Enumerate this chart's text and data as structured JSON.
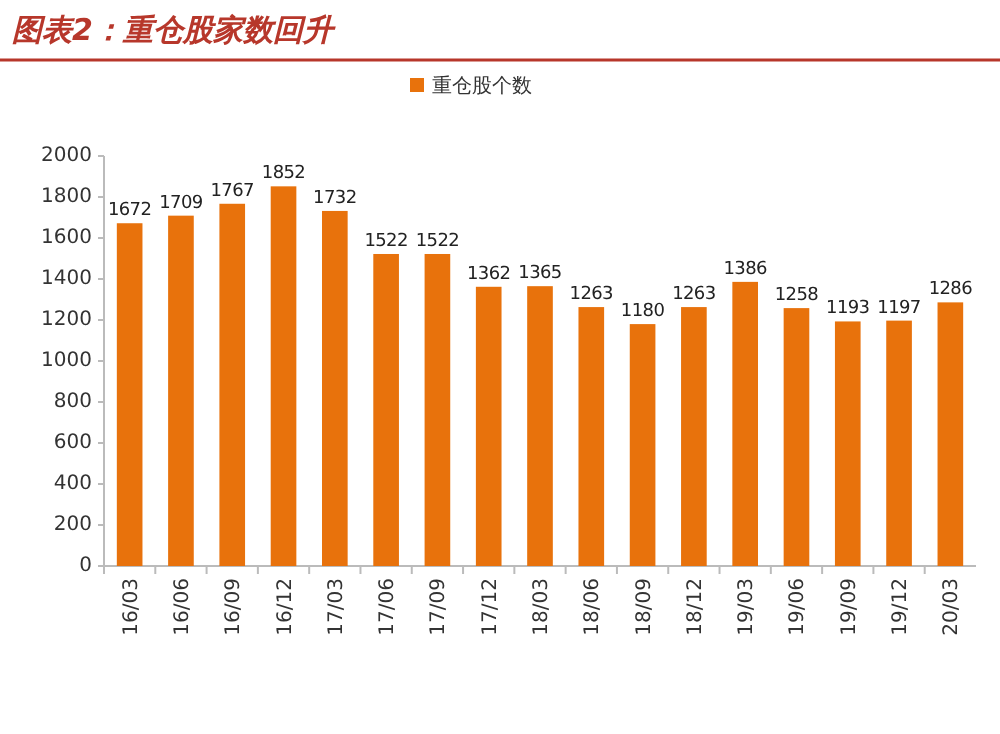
{
  "chart_data": {
    "type": "bar",
    "title": "图表2：重仓股家数回升",
    "categories": [
      "16/03",
      "16/06",
      "16/09",
      "16/12",
      "17/03",
      "17/06",
      "17/09",
      "17/12",
      "18/03",
      "18/06",
      "18/09",
      "18/12",
      "19/03",
      "19/06",
      "19/09",
      "19/12",
      "20/03"
    ],
    "series": [
      {
        "name": "重仓股个数",
        "color": "#e8720c",
        "values": [
          1672,
          1709,
          1767,
          1852,
          1732,
          1522,
          1522,
          1362,
          1365,
          1263,
          1180,
          1263,
          1386,
          1258,
          1193,
          1197,
          1286
        ]
      }
    ],
    "ylim": [
      0,
      2000
    ],
    "yticks": [
      0,
      200,
      400,
      600,
      800,
      1000,
      1200,
      1400,
      1600,
      1800,
      2000
    ],
    "data_labels": true,
    "legend": "top"
  }
}
